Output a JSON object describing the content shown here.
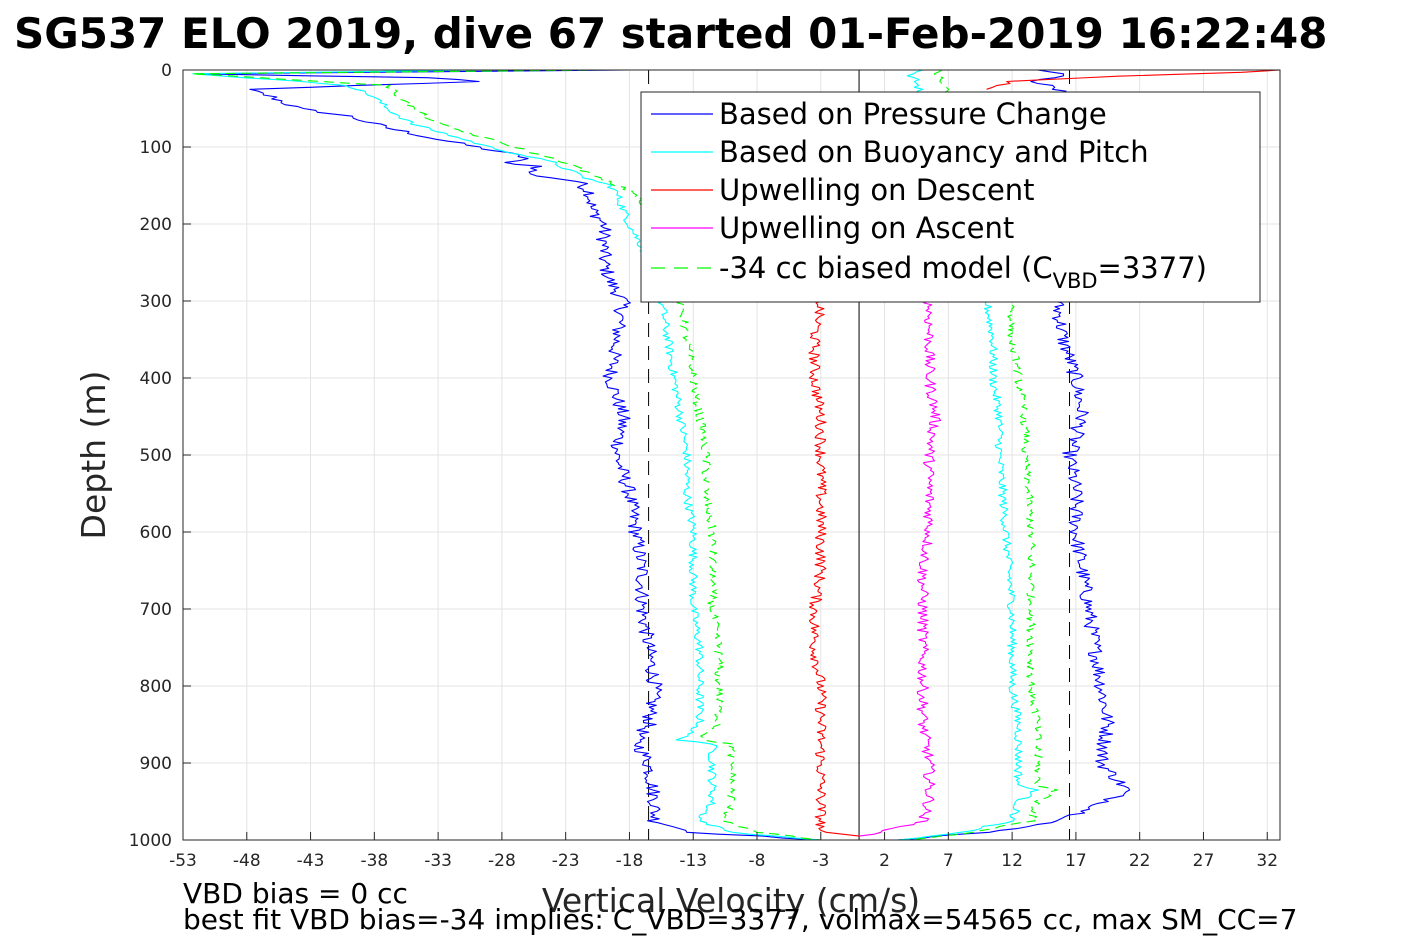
{
  "chart_data": {
    "type": "line",
    "title": "SG537 ELO 2019, dive 67 started 01-Feb-2019 16:22:48",
    "xlabel": "Vertical Velocity (cm/s)",
    "ylabel": "Depth (m)",
    "xlim": [
      -53,
      33
    ],
    "ylim": [
      0,
      1000
    ],
    "y_reversed": true,
    "grid": true,
    "legend_position": "top-right",
    "xticks": [
      -53,
      -48,
      -43,
      -38,
      -33,
      -28,
      -23,
      -18,
      -13,
      -8,
      -3,
      2,
      7,
      12,
      17,
      22,
      27,
      32
    ],
    "yticks": [
      0,
      100,
      200,
      300,
      400,
      500,
      600,
      700,
      800,
      900,
      1000
    ],
    "reference_lines": [
      {
        "x": -16.5,
        "style": "dashed",
        "color": "#000000"
      },
      {
        "x": 16.5,
        "style": "dashed",
        "color": "#000000"
      },
      {
        "x": 0,
        "style": "solid",
        "color": "#000000"
      }
    ],
    "series": [
      {
        "name": "Based on Pressure Change",
        "color": "#0000ff",
        "style": "solid",
        "jitter": 0.6,
        "branches": [
          {
            "depth": [
              0,
              5,
              10,
              15,
              25,
              35,
              50,
              60,
              75,
              90,
              100,
              110,
              115,
              120,
              125,
              135,
              145,
              160,
              180,
              200,
              225,
              250,
              275,
              300,
              350,
              400,
              450,
              500,
              550,
              600,
              650,
              700,
              750,
              800,
              850,
              870,
              900,
              950,
              975,
              990,
              1000
            ],
            "x": [
              -18,
              -52,
              -34,
              -30,
              -48,
              -46,
              -44,
              -40,
              -37,
              -33,
              -30,
              -27,
              -26,
              -28,
              -25,
              -26,
              -22,
              -21,
              -21,
              -20,
              -20,
              -20,
              -19.5,
              -18.5,
              -19,
              -19.5,
              -18.5,
              -19,
              -18,
              -17.5,
              -17,
              -17,
              -16.5,
              -16,
              -16.5,
              -17.5,
              -16.5,
              -16,
              -16,
              -13,
              -3
            ]
          },
          {
            "depth": [
              0,
              5,
              15,
              30,
              100,
              200,
              300,
              350,
              400,
              450,
              500,
              550,
              600,
              650,
              700,
              750,
              800,
              850,
              900,
              935,
              950,
              975,
              990,
              1000
            ],
            "x": [
              14,
              16,
              14,
              16,
              16,
              16,
              15.5,
              16,
              17,
              17.5,
              16.5,
              17,
              17,
              17.5,
              18,
              18.5,
              19,
              19.5,
              19,
              21,
              19.5,
              16,
              10,
              3
            ]
          }
        ]
      },
      {
        "name": "Based on Buoyancy and Pitch",
        "color": "#00ffff",
        "style": "solid",
        "jitter": 0.35,
        "branches": [
          {
            "depth": [
              0,
              5,
              20,
              35,
              50,
              70,
              90,
              100,
              120,
              140,
              150,
              160,
              200,
              230,
              250,
              280,
              300,
              350,
              400,
              450,
              500,
              550,
              600,
              650,
              700,
              750,
              800,
              850,
              870,
              875,
              900,
              950,
              975,
              990,
              1000
            ],
            "x": [
              -30,
              -52,
              -40,
              -38,
              -37,
              -35,
              -31,
              -29,
              -24,
              -21.5,
              -19.5,
              -19,
              -18,
              -17,
              -16.5,
              -16,
              -15.5,
              -15,
              -14.5,
              -14,
              -13.5,
              -13.5,
              -13,
              -13,
              -13,
              -12.5,
              -12.5,
              -12.5,
              -14,
              -11.5,
              -11.5,
              -11.5,
              -12.5,
              -10,
              -3
            ]
          },
          {
            "depth": [
              0,
              5,
              15,
              300,
              350,
              400,
              450,
              500,
              600,
              700,
              800,
              850,
              900,
              930,
              935,
              950,
              975,
              990,
              1000
            ],
            "x": [
              5,
              4,
              4.5,
              10,
              10.5,
              10.5,
              11,
              11,
              11.5,
              12,
              12,
              12.5,
              12.5,
              12.5,
              14,
              12.5,
              12,
              8,
              3
            ]
          }
        ]
      },
      {
        "name": "Upwelling on Descent",
        "color": "#ff0000",
        "style": "solid",
        "jitter": 0.45,
        "branches": [
          {
            "depth": [
              300,
              350,
              400,
              450,
              500,
              550,
              600,
              650,
              700,
              750,
              800,
              850,
              900,
              950,
              990,
              995
            ],
            "x": [
              -3,
              -3.5,
              -3.5,
              -3,
              -3,
              -3,
              -3,
              -3,
              -3.5,
              -3.5,
              -3,
              -3,
              -3,
              -3,
              -3,
              0
            ]
          },
          {
            "depth": [
              0,
              3,
              8,
              15,
              25
            ],
            "x": [
              33,
              30,
              20,
              12,
              10
            ]
          }
        ]
      },
      {
        "name": "Upwelling on Ascent",
        "color": "#ff00ff",
        "style": "solid",
        "jitter": 0.45,
        "branches": [
          {
            "depth": [
              300,
              350,
              400,
              450,
              500,
              550,
              600,
              650,
              700,
              750,
              800,
              850,
              900,
              950,
              975,
              985,
              995
            ],
            "x": [
              5.5,
              5.5,
              5.5,
              6,
              5.5,
              5.5,
              5.5,
              5,
              5,
              5,
              5,
              5,
              5.5,
              5.5,
              5,
              3,
              0
            ]
          }
        ]
      },
      {
        "name": "-34 cc biased model (C_VBD=3377)",
        "color": "#00ff00",
        "style": "dashed",
        "jitter": 0.35,
        "branches": [
          {
            "depth": [
              0,
              5,
              20,
              35,
              50,
              70,
              90,
              100,
              120,
              140,
              150,
              160,
              200,
              230,
              250,
              280,
              300,
              350,
              400,
              450,
              500,
              550,
              600,
              650,
              700,
              750,
              800,
              850,
              870,
              875,
              900,
              950,
              975,
              990,
              1000
            ],
            "x": [
              -20,
              -52,
              -37,
              -36,
              -35,
              -33,
              -29,
              -27,
              -23,
              -20.5,
              -19,
              -17.5,
              -16.5,
              -15.5,
              -15,
              -14.5,
              -14,
              -13.5,
              -13,
              -12.5,
              -12,
              -12,
              -11.5,
              -11.5,
              -11.5,
              -11,
              -11,
              -11,
              -12.5,
              -10,
              -10,
              -10,
              -10.5,
              -8,
              -3
            ]
          },
          {
            "depth": [
              0,
              5,
              15,
              300,
              350,
              400,
              450,
              500,
              600,
              700,
              800,
              850,
              900,
              930,
              935,
              950,
              975,
              990,
              1000
            ],
            "x": [
              6.5,
              6,
              6.5,
              12,
              12,
              12.5,
              13,
              13,
              13.5,
              13.5,
              13.5,
              14,
              14,
              14,
              15.5,
              14,
              13.5,
              9,
              4
            ]
          }
        ]
      }
    ],
    "annotations": [
      "VBD bias = 0 cc",
      "best fit VBD bias=-34 implies: C_VBD=3377, volmax=54565 cc, max SM_CC=7"
    ]
  },
  "legend": {
    "entries": [
      {
        "label": "Based on Pressure Change"
      },
      {
        "label": "Based on Buoyancy and Pitch"
      },
      {
        "label": "Upwelling on Descent"
      },
      {
        "label": "Upwelling on Ascent"
      },
      {
        "label_main": "-34 cc biased model (C",
        "label_sub": "VBD",
        "label_tail": "=3377)"
      }
    ]
  }
}
